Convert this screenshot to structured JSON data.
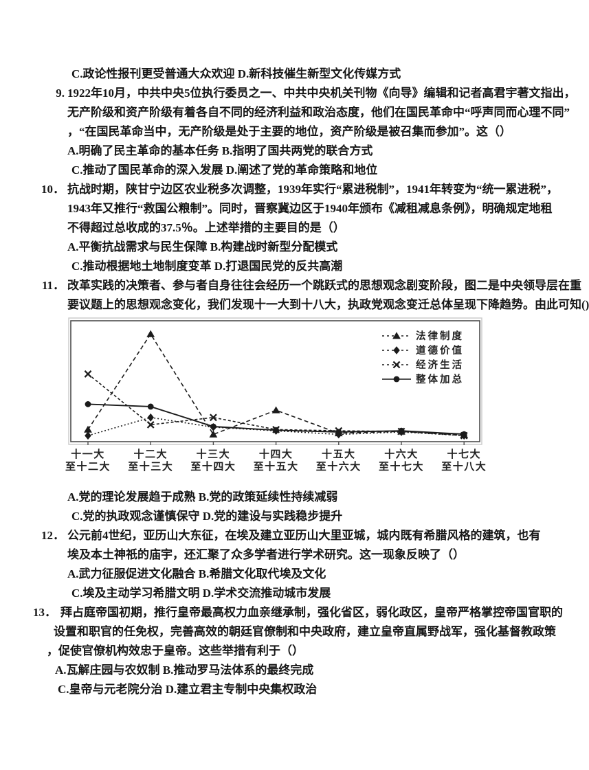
{
  "page": {
    "bg": "#ffffff",
    "text_color": "#161616"
  },
  "intro_options_cd": "C.政论性报刊更受普通大众欢迎 D.新科技催生新型文化传媒方式",
  "questions": [
    {
      "number": "9.",
      "lines": [
        "1922年10月，中共中央5位执行委员之一、中共中央机关刊物《向导》编辑和记者高君宇著文指出，",
        "无产阶级和资产阶级有着各自不同的经济利益和政治态度，他们在国民革命中“呼声同而心理不同”",
        "，“在国民革命当中，无产阶级是处于主要的地位，资产阶级是被召集而参加”。这（）"
      ],
      "options_ab": "A.明确了民主革命的基本任务 B.指明了国共两党的联合方式",
      "options_cd": "C.推动了国民革命的深入发展 D.阐述了党的革命策略和地位"
    },
    {
      "number": "10．",
      "lines": [
        "抗战时期，陕甘宁边区农业税多次调整，1939年实行“累进税制”，1941年转变为“统一累进税”，",
        "1943年又推行“救国公粮制”。同时，晋察冀边区于1940年颁布《减租减息条例》，明确规定地租",
        "不得超过总收成的37.5％。上述举措的主要目的是（）"
      ],
      "options_ab": "A.平衡抗战需求与民生保障 B.构建战时新型分配模式",
      "options_cd": "C.推动根据地土地制度变革 D.打退国民党的反共高潮"
    },
    {
      "number": "11．",
      "lines": [
        "改革实践的决策者、参与者自身往往会经历一个跳跃式的思想观念剧变阶段，图二是中央领导层在重",
        "要议题上的思想观念变化，我们发现十一大到十八大，执政党观念变迁总体呈现下降趋势。由此可知()"
      ],
      "options_ab": "A.党的理论发展趋于成熟 B.党的政策延续性持续减弱",
      "options_cd": "C.党的执政观念谨慎保守 D.党的建设与实践稳步提升"
    },
    {
      "number": "12．",
      "lines": [
        "公元前4世纪，亚历山大东征，在埃及建立亚历山大里亚城，城内既有希腊风格的建筑，也有",
        "埃及本土神祇的庙宇，还汇聚了众多学者进行学术研究。这一现象反映了（）"
      ],
      "options_ab": "A.武力征服促进文化融合 B.希腊文化取代埃及文化",
      "options_cd": "C.埃及主动学习希腊文明 D.学术交流推动城市发展"
    },
    {
      "number": "13．",
      "lines": [
        "拜占庭帝国初期，推行皇帝最高权力血亲继承制，强化省区，弱化政区，皇帝严格掌控帝国官职的",
        "设置和职官的任免权，完善高效的朝廷官僚制和中央政府，建立皇帝直属野战军，强化基督教政策",
        "，促使官僚机构效忠于皇帝。这些举措有利于（）"
      ],
      "options_ab": "A.瓦解庄园与农奴制 B.推动罗马法体系的最终完成",
      "options_cd": "C.皇帝与元老院分治 D.建立君主专制中央集权政治"
    }
  ],
  "chart_data": {
    "type": "line",
    "title": "",
    "xlabel": "",
    "ylabel": "",
    "ylim": [
      0,
      10
    ],
    "grid": false,
    "legend_position": "top-right",
    "line_color": "#1b1b1b",
    "categories": [
      "十一大\n至十二大",
      "十二大\n至十三大",
      "十三大\n至十四大",
      "十四大\n至十五大",
      "十五大\n至十六大",
      "十六大\n至十七大",
      "十七大\n至十八大"
    ],
    "series": [
      {
        "name": "法律制度",
        "marker": "triangle",
        "dash": "6 4",
        "solid": false,
        "values": [
          1.0,
          8.9,
          0.6,
          2.6,
          0.7,
          0.85,
          0.55
        ]
      },
      {
        "name": "道德价值",
        "marker": "diamond",
        "dash": "2 3",
        "solid": false,
        "values": [
          0.5,
          2.0,
          1.2,
          0.9,
          0.6,
          0.8,
          0.5
        ]
      },
      {
        "name": "经济生活",
        "marker": "x",
        "dash": "4 3",
        "solid": false,
        "values": [
          5.6,
          1.4,
          2.0,
          1.0,
          0.9,
          0.85,
          0.5
        ]
      },
      {
        "name": "整体加总",
        "marker": "circle",
        "dash": null,
        "solid": true,
        "values": [
          3.1,
          2.9,
          1.25,
          0.95,
          0.8,
          0.9,
          0.62
        ]
      }
    ]
  }
}
